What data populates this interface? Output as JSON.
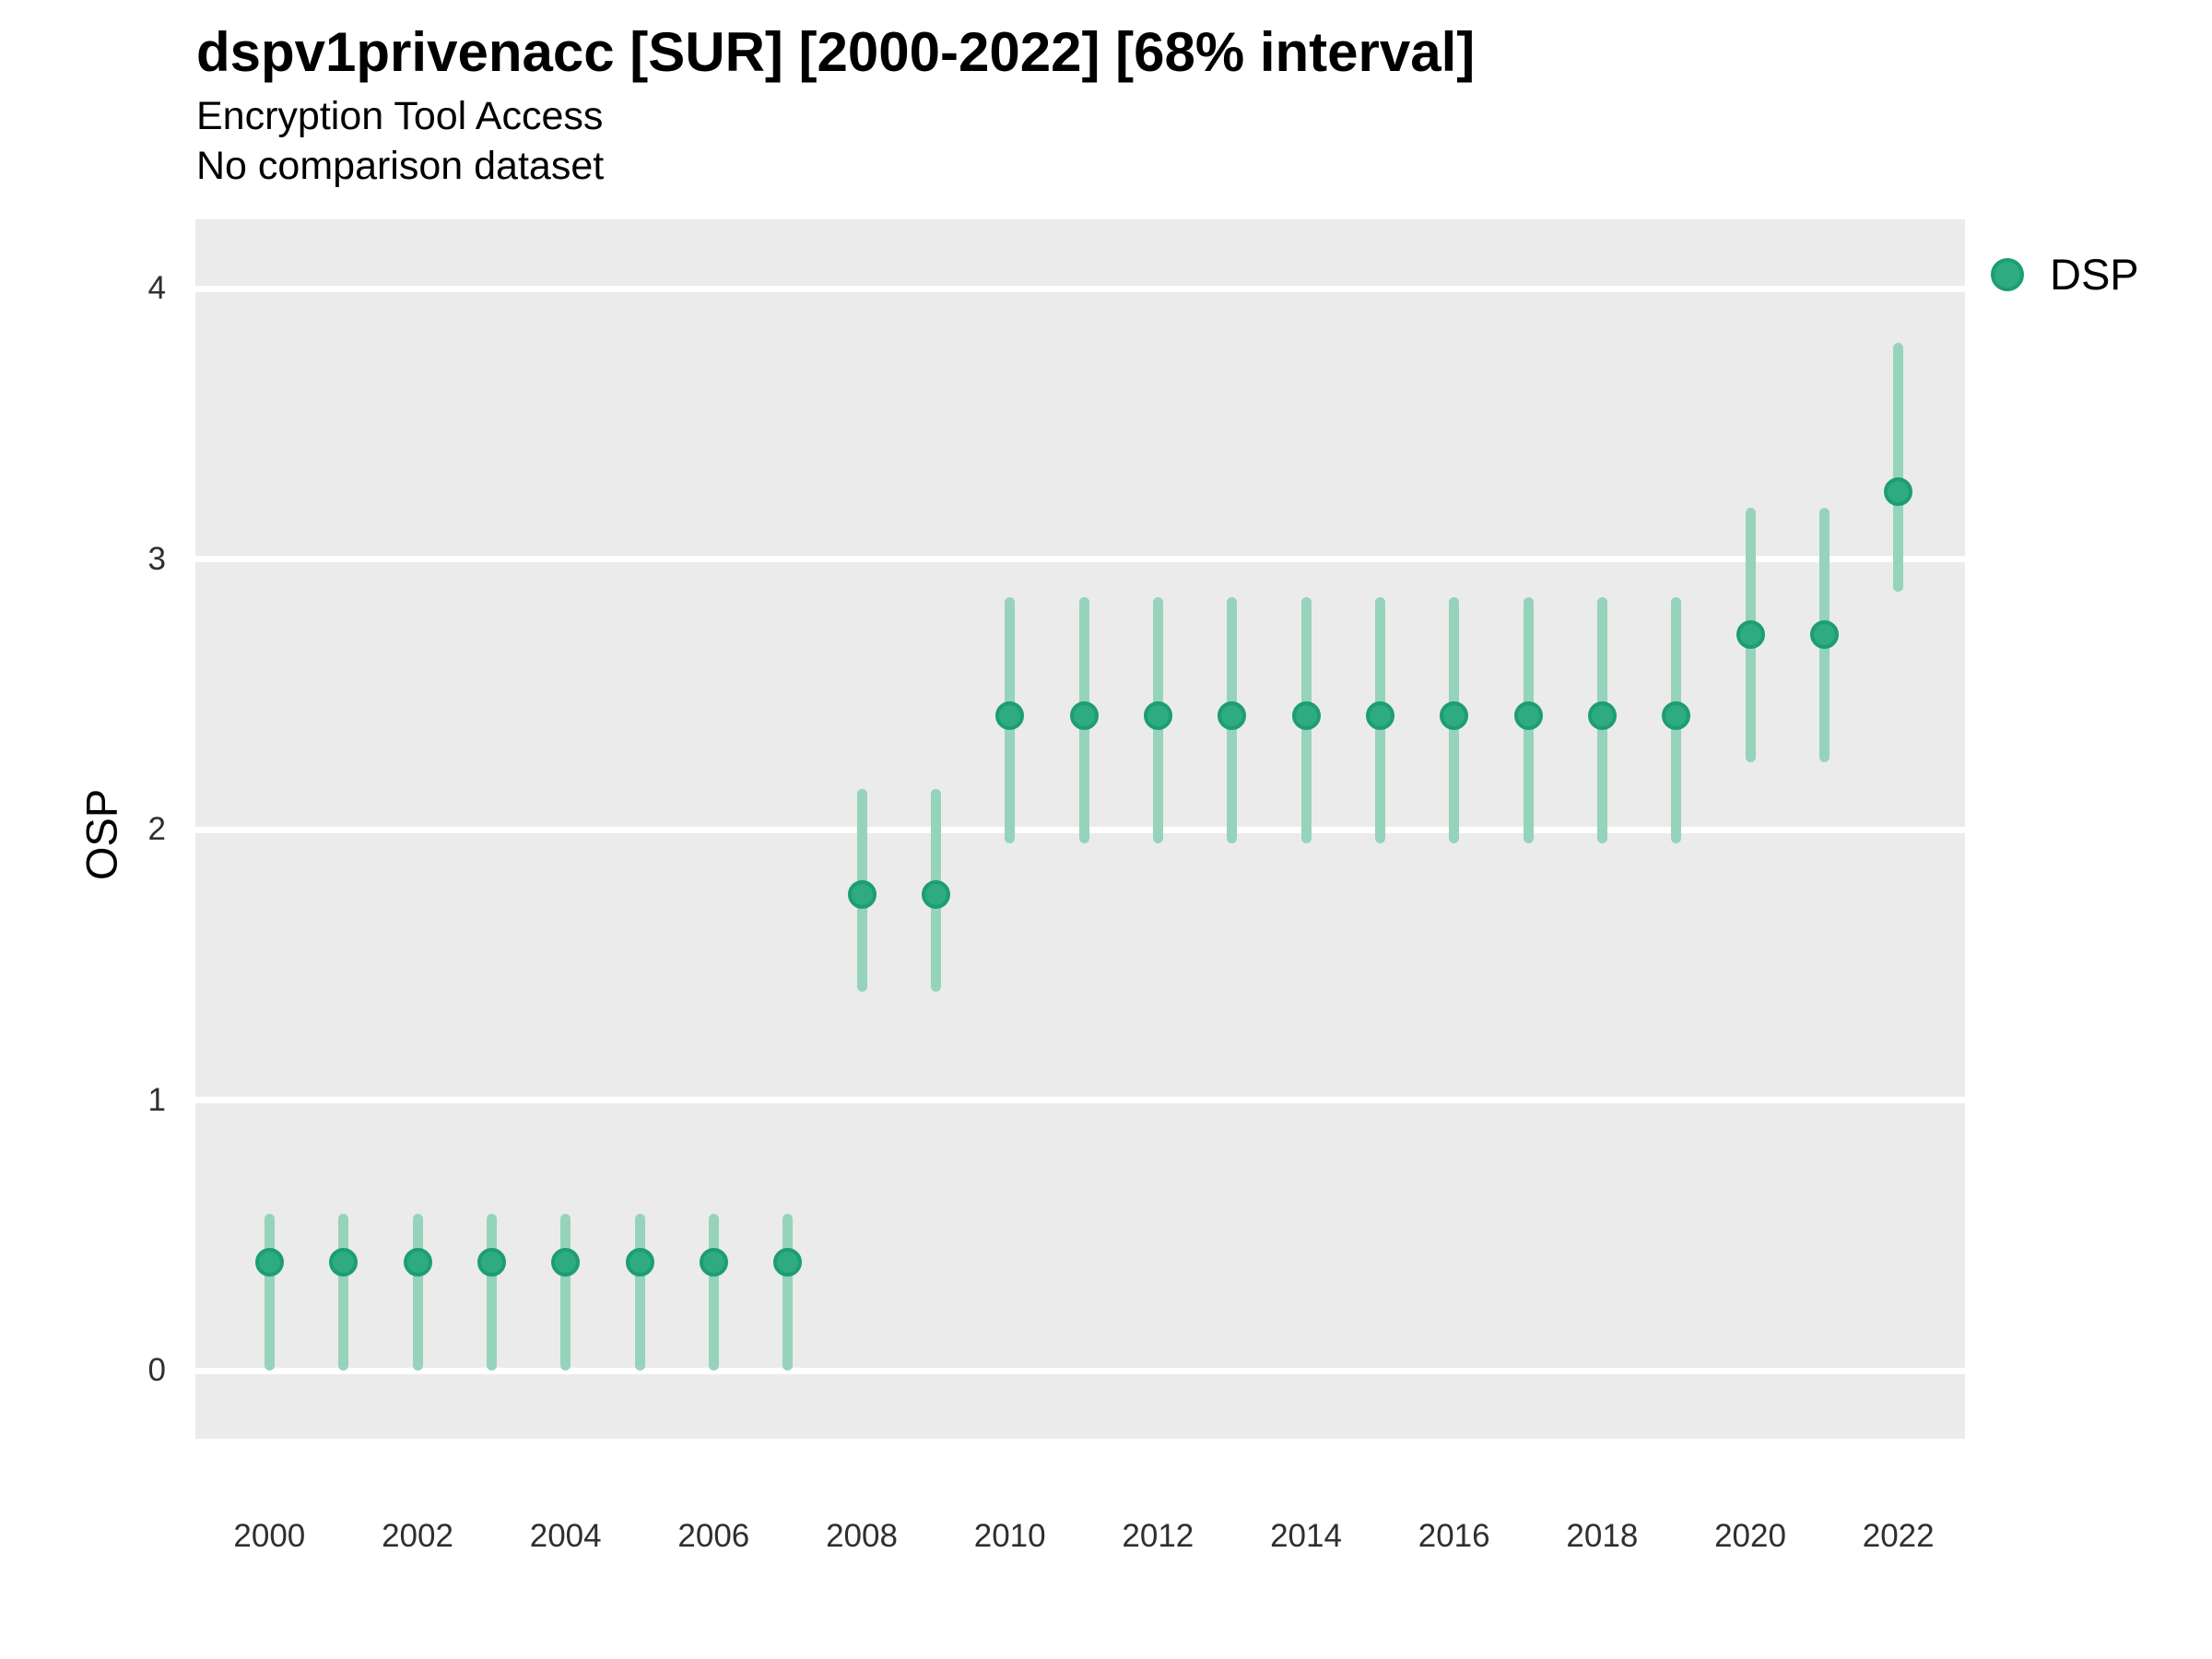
{
  "chart_data": {
    "type": "pointrange",
    "title": "dspv1privenacc [SUR] [2000-2022] [68% interval]",
    "subtitle": "Encryption Tool Access",
    "note": "No comparison dataset",
    "ylabel": "OSP",
    "xlabel": "",
    "legend": {
      "label": "DSP",
      "position": "right"
    },
    "grid": "major-horizontal-only",
    "xlim": [
      1999.0,
      2022.9
    ],
    "ylim": [
      -0.252,
      4.256
    ],
    "x_ticks": [
      2000,
      2002,
      2004,
      2006,
      2008,
      2010,
      2012,
      2014,
      2016,
      2018,
      2020,
      2022
    ],
    "y_ticks": [
      0,
      1,
      2,
      3,
      4
    ],
    "series": [
      {
        "name": "DSP",
        "points": [
          {
            "year": 2000,
            "mid": 0.4,
            "lo": 0.0,
            "hi": 0.58
          },
          {
            "year": 2001,
            "mid": 0.4,
            "lo": 0.0,
            "hi": 0.58
          },
          {
            "year": 2002,
            "mid": 0.4,
            "lo": 0.0,
            "hi": 0.58
          },
          {
            "year": 2003,
            "mid": 0.4,
            "lo": 0.0,
            "hi": 0.58
          },
          {
            "year": 2004,
            "mid": 0.4,
            "lo": 0.0,
            "hi": 0.58
          },
          {
            "year": 2005,
            "mid": 0.4,
            "lo": 0.0,
            "hi": 0.58
          },
          {
            "year": 2006,
            "mid": 0.4,
            "lo": 0.0,
            "hi": 0.58
          },
          {
            "year": 2007,
            "mid": 0.4,
            "lo": 0.0,
            "hi": 0.58
          },
          {
            "year": 2008,
            "mid": 1.76,
            "lo": 1.4,
            "hi": 2.15
          },
          {
            "year": 2009,
            "mid": 1.76,
            "lo": 1.4,
            "hi": 2.15
          },
          {
            "year": 2010,
            "mid": 2.42,
            "lo": 1.95,
            "hi": 2.86
          },
          {
            "year": 2011,
            "mid": 2.42,
            "lo": 1.95,
            "hi": 2.86
          },
          {
            "year": 2012,
            "mid": 2.42,
            "lo": 1.95,
            "hi": 2.86
          },
          {
            "year": 2013,
            "mid": 2.42,
            "lo": 1.95,
            "hi": 2.86
          },
          {
            "year": 2014,
            "mid": 2.42,
            "lo": 1.95,
            "hi": 2.86
          },
          {
            "year": 2015,
            "mid": 2.42,
            "lo": 1.95,
            "hi": 2.86
          },
          {
            "year": 2016,
            "mid": 2.42,
            "lo": 1.95,
            "hi": 2.86
          },
          {
            "year": 2017,
            "mid": 2.42,
            "lo": 1.95,
            "hi": 2.86
          },
          {
            "year": 2018,
            "mid": 2.42,
            "lo": 1.95,
            "hi": 2.86
          },
          {
            "year": 2019,
            "mid": 2.42,
            "lo": 1.95,
            "hi": 2.86
          },
          {
            "year": 2020,
            "mid": 2.72,
            "lo": 2.25,
            "hi": 3.19
          },
          {
            "year": 2021,
            "mid": 2.72,
            "lo": 2.25,
            "hi": 3.19
          },
          {
            "year": 2022,
            "mid": 3.25,
            "lo": 2.88,
            "hi": 3.8
          }
        ]
      }
    ],
    "colors": {
      "point_fill": "#2FAB81",
      "point_ring": "#1C9E72",
      "interval_line": "#96D3BB",
      "panel_background": "#EBEBEB",
      "gridline": "#FFFFFF",
      "title_text": "#000000",
      "tick_text": "#2F2F2F"
    }
  }
}
